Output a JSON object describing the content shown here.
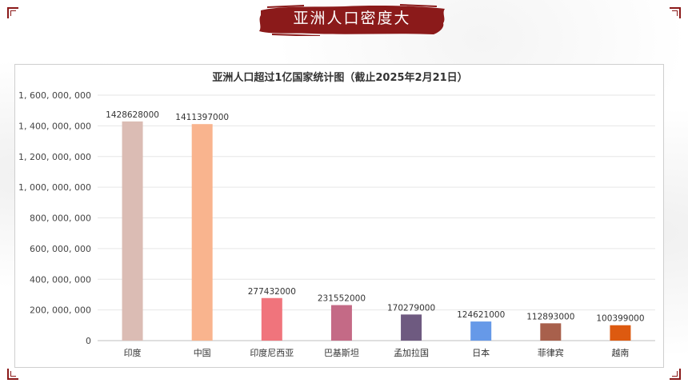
{
  "slide": {
    "banner_title": "亚洲人口密度大",
    "banner_color": "#8b1a1a",
    "corner_color": "#8b1a1a"
  },
  "chart_data": {
    "type": "bar",
    "title": "亚洲人口超过1亿国家统计图（截止2025年2月21日）",
    "xlabel": "",
    "ylabel": "",
    "categories": [
      "印度",
      "中国",
      "印度尼西亚",
      "巴基斯坦",
      "孟加拉国",
      "日本",
      "菲律宾",
      "越南"
    ],
    "values": [
      1428628000,
      1411397000,
      277432000,
      231552000,
      170279000,
      124621000,
      112893000,
      100399000
    ],
    "data_labels": [
      "1428628000",
      "1411397000",
      "277432000",
      "231552000",
      "170279000",
      "124621000",
      "112893000",
      "100399000"
    ],
    "colors": [
      "#dbbcb4",
      "#f9b48e",
      "#f0747c",
      "#c46a86",
      "#6e5a80",
      "#6699e8",
      "#a8604c",
      "#dd5a10"
    ],
    "ylim": [
      0,
      1600000000
    ],
    "y_ticks": [
      0,
      200000000,
      400000000,
      600000000,
      800000000,
      1000000000,
      1200000000,
      1400000000,
      1600000000
    ],
    "y_tick_labels": [
      "0",
      "200, 000, 000",
      "400, 000, 000",
      "600, 000, 000",
      "800, 000, 000",
      "1, 000, 000, 000",
      "1, 200, 000, 000",
      "1, 400, 000, 000",
      "1, 600, 000, 000"
    ],
    "grid": true,
    "legend": "none"
  }
}
